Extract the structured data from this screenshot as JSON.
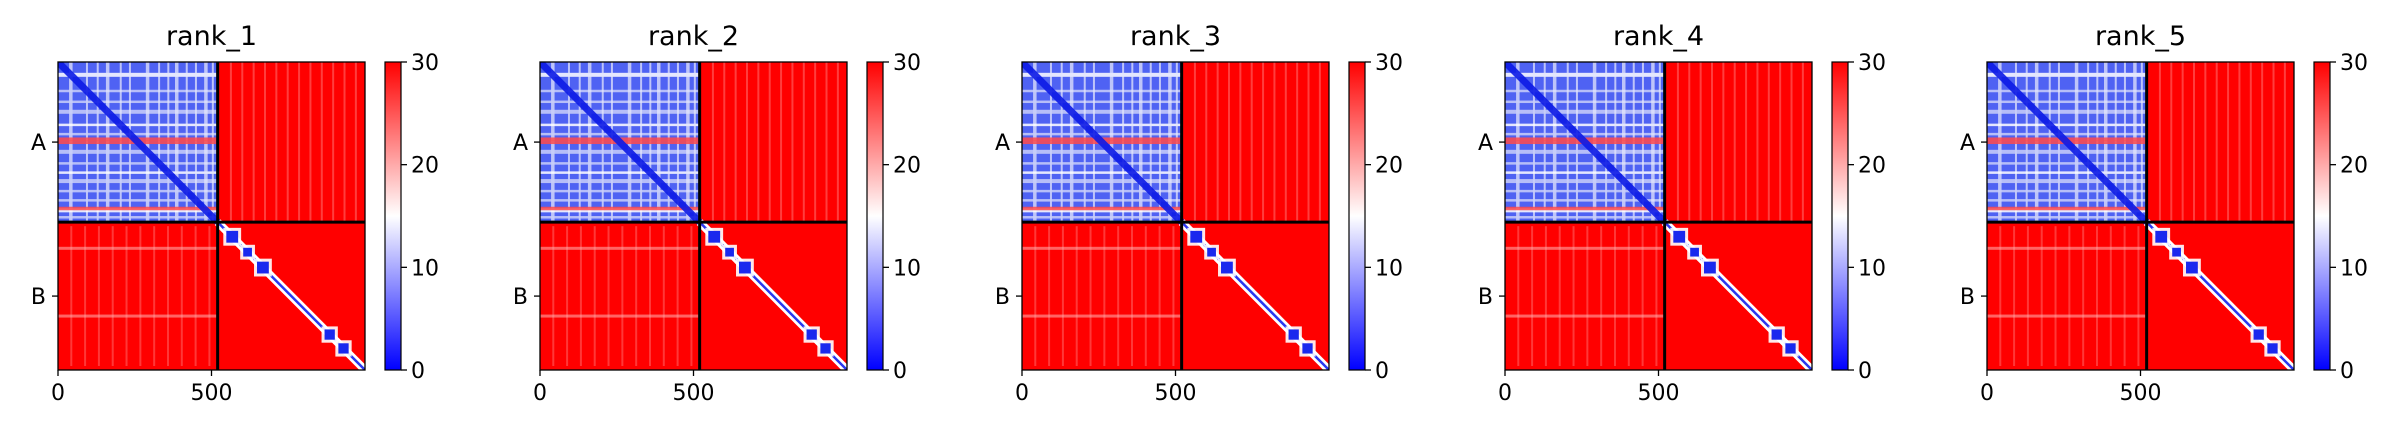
{
  "figure": {
    "colormap": {
      "low": "#0000ff",
      "mid": "#ffffff",
      "high": "#ff0000"
    },
    "domain_color": "#ff0000"
  },
  "chart_data": [
    {
      "type": "heatmap",
      "title": "rank_1",
      "ylabels": [
        "A",
        "B"
      ],
      "xticks": [
        0,
        500
      ],
      "xlim": [
        0,
        1000
      ],
      "chain_boundary": 520,
      "colorbar": {
        "ticks": [
          0,
          10,
          20,
          30
        ],
        "range": [
          0,
          30
        ]
      }
    },
    {
      "type": "heatmap",
      "title": "rank_2",
      "ylabels": [
        "A",
        "B"
      ],
      "xticks": [
        0,
        500
      ],
      "xlim": [
        0,
        1000
      ],
      "chain_boundary": 520,
      "colorbar": {
        "ticks": [
          0,
          10,
          20,
          30
        ],
        "range": [
          0,
          30
        ]
      }
    },
    {
      "type": "heatmap",
      "title": "rank_3",
      "ylabels": [
        "A",
        "B"
      ],
      "xticks": [
        0,
        500
      ],
      "xlim": [
        0,
        1000
      ],
      "chain_boundary": 520,
      "colorbar": {
        "ticks": [
          0,
          10,
          20,
          30
        ],
        "range": [
          0,
          30
        ]
      }
    },
    {
      "type": "heatmap",
      "title": "rank_4",
      "ylabels": [
        "A",
        "B"
      ],
      "xticks": [
        0,
        500
      ],
      "xlim": [
        0,
        1000
      ],
      "chain_boundary": 520,
      "colorbar": {
        "ticks": [
          0,
          10,
          20,
          30
        ],
        "range": [
          0,
          30
        ]
      }
    },
    {
      "type": "heatmap",
      "title": "rank_5",
      "ylabels": [
        "A",
        "B"
      ],
      "xticks": [
        0,
        500
      ],
      "xlim": [
        0,
        1000
      ],
      "chain_boundary": 520,
      "colorbar": {
        "ticks": [
          0,
          10,
          20,
          30
        ],
        "range": [
          0,
          30
        ]
      }
    }
  ]
}
